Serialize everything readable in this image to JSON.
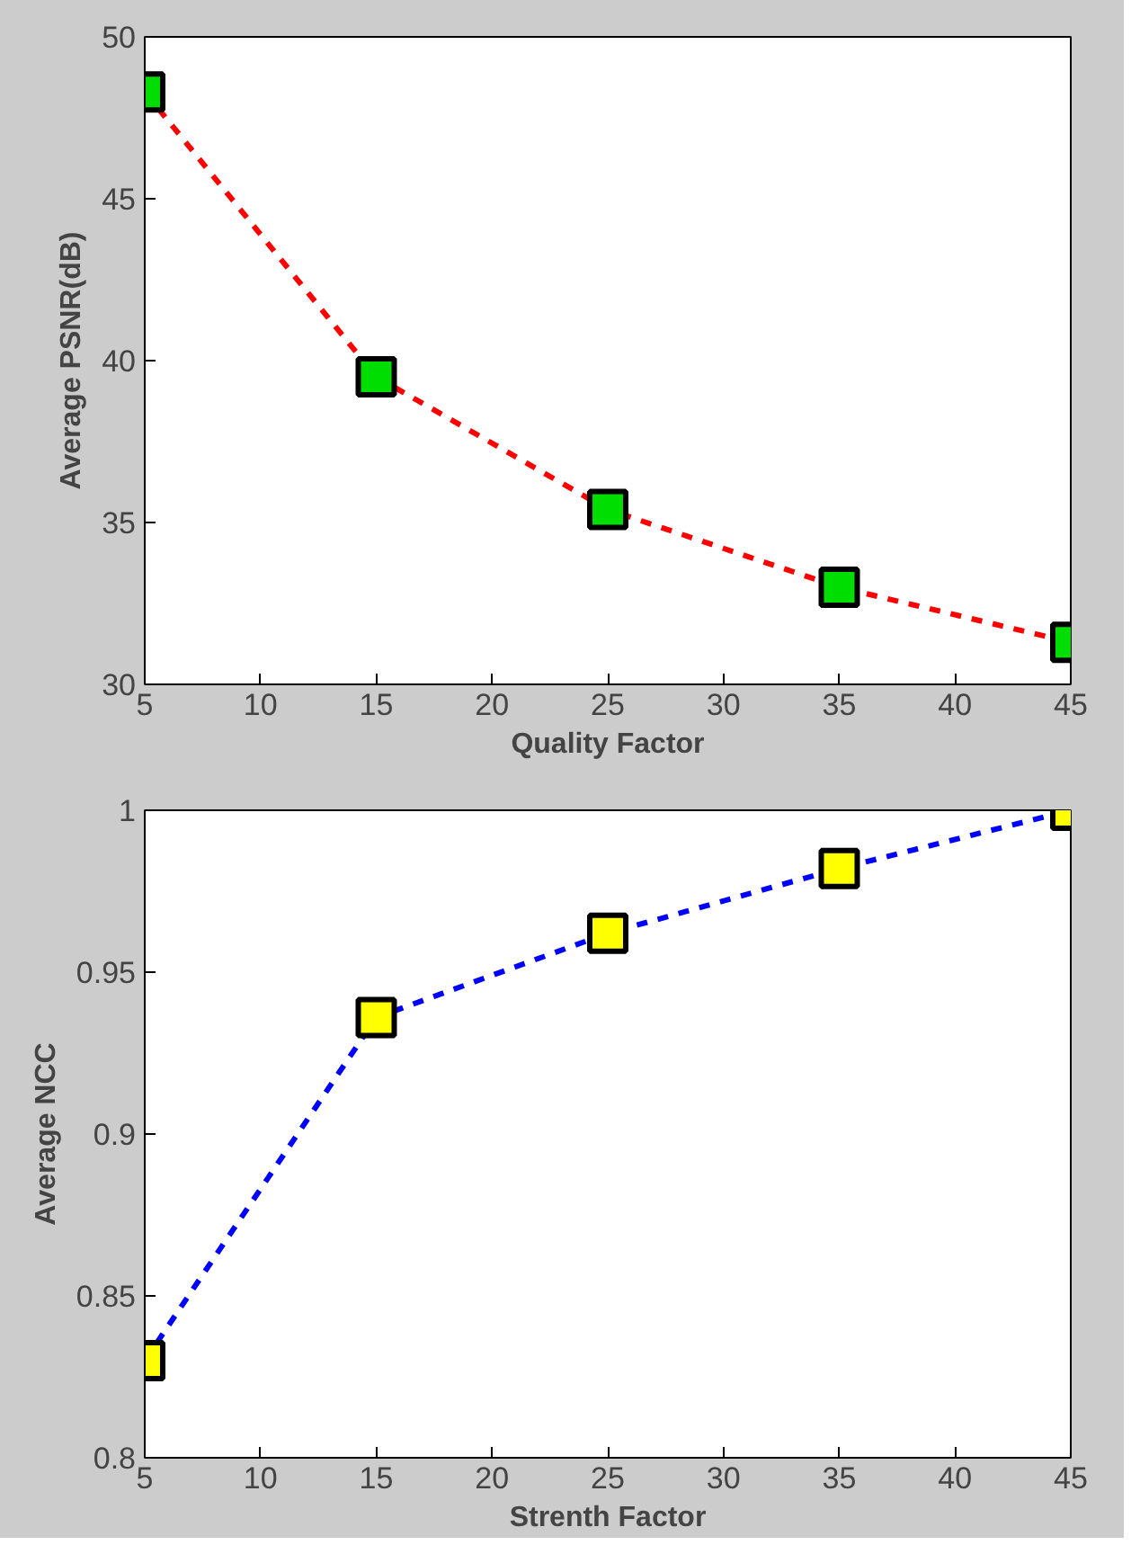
{
  "chart_data": [
    {
      "type": "line",
      "xlabel": "Quality Factor",
      "ylabel": "Average PSNR(dB)",
      "x": [
        5,
        15,
        25,
        35,
        45
      ],
      "series": [
        {
          "color": "#ff0000",
          "values": [
            48.3,
            39.5,
            35.4,
            33.0,
            31.3
          ]
        }
      ],
      "xlim": [
        5,
        45
      ],
      "xticks": [
        5,
        10,
        15,
        20,
        25,
        30,
        35,
        40,
        45
      ],
      "ylim": [
        30,
        50
      ],
      "yticks": [
        30,
        35,
        40,
        45,
        50
      ],
      "marker": "square",
      "line_style": "dashed",
      "grid": false
    },
    {
      "type": "line",
      "xlabel": "Strenth Factor",
      "ylabel": "Average NCC",
      "x": [
        5,
        15,
        25,
        35,
        45
      ],
      "series": [
        {
          "color": "#0000ff",
          "values": [
            0.83,
            0.936,
            0.962,
            0.982,
            1.0
          ]
        }
      ],
      "xlim": [
        5,
        45
      ],
      "xticks": [
        5,
        10,
        15,
        20,
        25,
        30,
        35,
        40,
        45
      ],
      "ylim": [
        0.8,
        1
      ],
      "yticks": [
        0.8,
        0.85,
        0.9,
        0.95,
        1
      ],
      "marker": "square",
      "line_style": "dashed",
      "grid": false
    }
  ]
}
